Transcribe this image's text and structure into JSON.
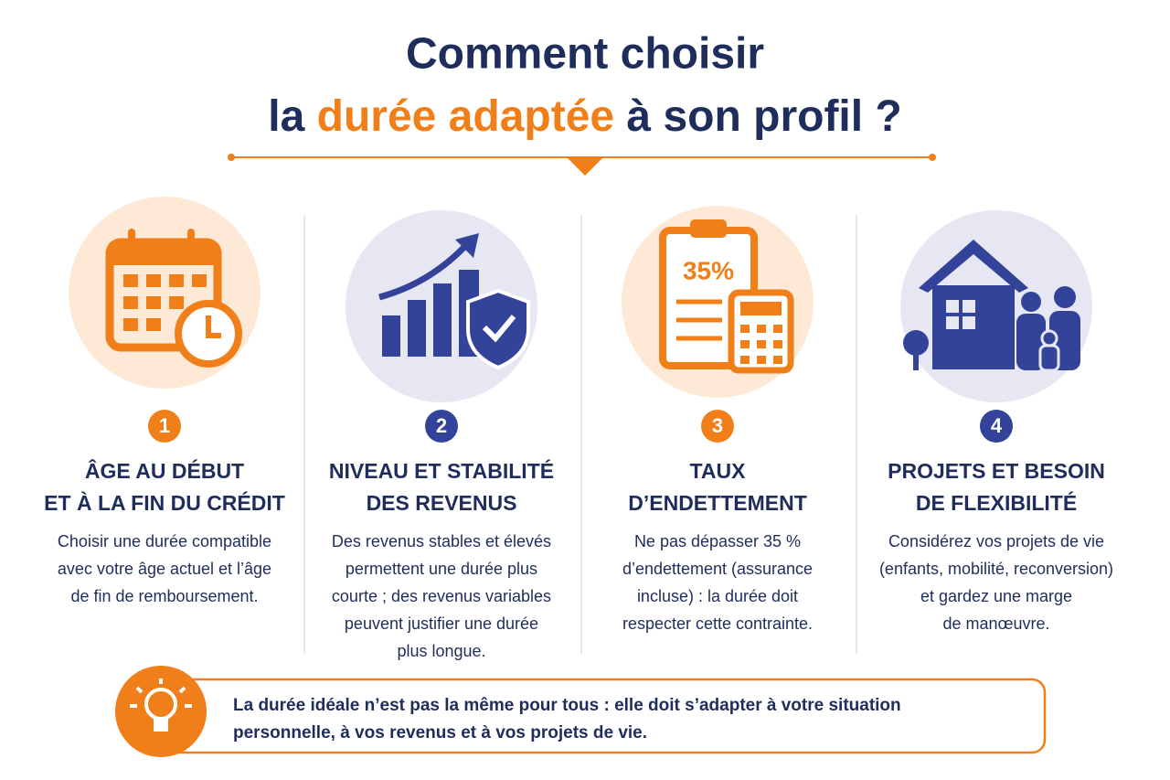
{
  "title": {
    "line1": "Comment choisir",
    "line2": {
      "before": "la ",
      "highlight": "durée adaptée",
      "after": " à son profil ?"
    }
  },
  "icon_label": "35%",
  "columns": [
    {
      "number": "1",
      "heading": [
        "ÂGE AU DÉBUT",
        "ET À LA FIN DU CRÉDIT"
      ],
      "text": [
        "Choisir une durée compatible",
        "avec votre âge actuel et l’âge",
        "de fin de remboursement."
      ]
    },
    {
      "number": "2",
      "heading": [
        "NIVEAU ET STABILITÉ",
        "DES REVENUS"
      ],
      "text": [
        "Des revenus stables et élevés",
        "permettent une durée plus",
        "courte ; des revenus variables",
        "peuvent justifier une durée",
        "plus longue."
      ]
    },
    {
      "number": "3",
      "heading": [
        "TAUX",
        "D’ENDETTEMENT"
      ],
      "text": [
        "Ne pas dépasser 35 %",
        "d’endettement (assurance",
        "incluse) : la durée doit",
        "respecter cette contrainte."
      ]
    },
    {
      "number": "4",
      "heading": [
        "PROJETS ET BESOIN",
        "DE FLEXIBILITÉ"
      ],
      "text": [
        "Considérez vos projets de vie",
        "(enfants, mobilité, reconversion)",
        "et gardez une marge",
        "de manœuvre."
      ]
    }
  ],
  "callout": [
    "La durée idéale n’est pas la même pour tous : elle doit s’adapter à votre situation",
    "personnelle, à vos revenus et à vos projets de vie."
  ]
}
